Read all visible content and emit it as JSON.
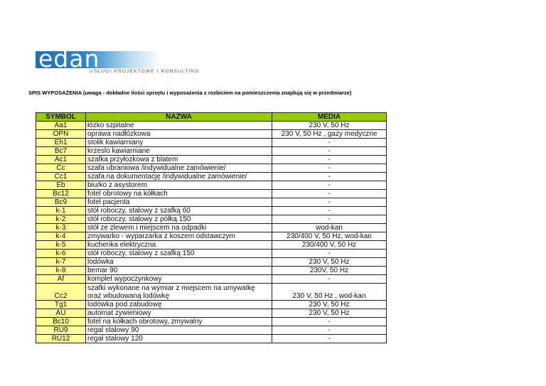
{
  "logo": {
    "text": "edan",
    "subtitle": "USŁUGI PROJEKTOWE I KONSULTING"
  },
  "title": "SPIS WYPOSAŻENIA (uwaga - dokładne ilości sprzętu i wyposażenia z rozbiciem na pomieszczenia znajdują się w przedmiarze)",
  "table": {
    "headers": [
      "SYMBOL",
      "NAZWA",
      "MEDIA"
    ],
    "rows": [
      {
        "symbol": "Aa1",
        "name": "łóżko szpitalne",
        "media": "230 V, 50 Hz"
      },
      {
        "symbol": "OPN",
        "name": "oprawa nadłózkowa",
        "media": "230 V, 50 Hz , gazy medyczne"
      },
      {
        "symbol": "Eh1",
        "name": "stolik kawiarniany",
        "media": "-"
      },
      {
        "symbol": "Bc7",
        "name": "krzeslo kawiarniane",
        "media": "-"
      },
      {
        "symbol": "Ac1",
        "name": "szafka przyłozkowa z blatem",
        "media": "-"
      },
      {
        "symbol": "Cc",
        "name": "szafa ubraniowa /indywidualne zamówienie/",
        "media": "-"
      },
      {
        "symbol": "Cc1",
        "name": "szafa na dokumentację /indywidualne zamówienie/",
        "media": "-"
      },
      {
        "symbol": "Eb",
        "name": "biurko z asystorem",
        "media": "-"
      },
      {
        "symbol": "Bc12",
        "name": "fotel obrotowy na kółkach",
        "media": "-"
      },
      {
        "symbol": "Bc9",
        "name": "fotel pacjenta",
        "media": "-"
      },
      {
        "symbol": "k-1",
        "name": "stół roboczy, stalowy z szafką 60",
        "media": "-"
      },
      {
        "symbol": "k-2",
        "name": "stół roboczy, stalowy z półką 150",
        "media": "-"
      },
      {
        "symbol": "k-3",
        "name": "stół ze zlewem i miejscem na odpadki",
        "media": "wod-kan"
      },
      {
        "symbol": "k-4",
        "name": "zmywarko - wyparzarka  z koszem odstawczym",
        "media": "230/400 V, 50 Hz, wod-kan"
      },
      {
        "symbol": "k-5",
        "name": "kuchenka elektryczna",
        "media": "230/400 V, 50 Hz"
      },
      {
        "symbol": "k-6",
        "name": "stół roboczy, stalowy z szafką 150",
        "media": "-"
      },
      {
        "symbol": "k-7",
        "name": "lodówka",
        "media": "230 V, 50 Hz"
      },
      {
        "symbol": "k-8",
        "name": "bemar 90",
        "media": "230V, 50 Hz"
      },
      {
        "symbol": "Af",
        "name": "komplet wypoczynkowy",
        "media": "-"
      },
      {
        "symbol": "Cc2",
        "name": "szafki wykonane na wymiar z miejscem na umywalkę oraz wbudowaną lodówkę",
        "media": "230 V, 50 Hz , wod-kan",
        "tall": true
      },
      {
        "symbol": "Tg1",
        "name": "lodówka pod zabudowę",
        "media": "230 V, 50 Hz"
      },
      {
        "symbol": "AU",
        "name": "automat zywieniowy",
        "media": "230 V, 50 Hz"
      },
      {
        "symbol": "Bc10",
        "name": "fotel na kółkach obrotowy, zmywalny",
        "media": "-"
      },
      {
        "symbol": "RU9",
        "name": "regal stalowy 90",
        "media": "-"
      },
      {
        "symbol": "RU12",
        "name": "regał stalowy 120",
        "media": "-"
      }
    ]
  },
  "colors": {
    "header_bg": "#99cc00",
    "symbol_bg": "#ffff99",
    "logo_blue": "#1f6fb5"
  }
}
